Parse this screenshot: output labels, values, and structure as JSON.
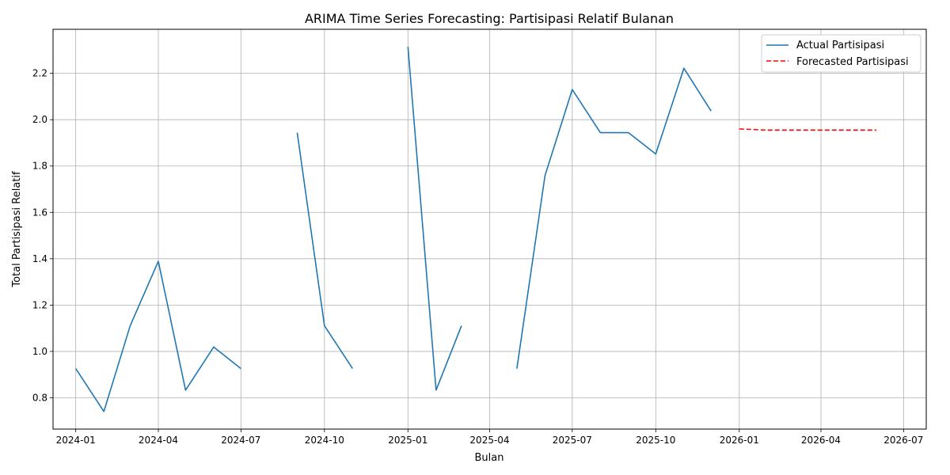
{
  "chart_data": {
    "type": "line",
    "title": "ARIMA Time Series Forecasting: Partisipasi Relatif Bulanan",
    "xlabel": "Bulan",
    "ylabel": "Total Partisipasi Relatif",
    "x_ticks": [
      "2024-01",
      "2024-04",
      "2024-07",
      "2024-10",
      "2025-01",
      "2025-04",
      "2025-07",
      "2025-10",
      "2026-01",
      "2026-04",
      "2026-07"
    ],
    "y_ticks": [
      "0.8",
      "1.0",
      "1.2",
      "1.4",
      "1.6",
      "1.8",
      "2.0",
      "2.2"
    ],
    "ylim": [
      0.665,
      2.39
    ],
    "xlim": [
      "2023-12-07",
      "2026-07-26"
    ],
    "grid": true,
    "legend": "top-right",
    "series": [
      {
        "name": "Actual Partisipasi",
        "color": "#1f77b4",
        "style": "solid",
        "x": [
          "2024-01",
          "2024-02",
          "2024-03",
          "2024-04",
          "2024-05",
          "2024-06",
          "2024-07",
          "2024-08",
          "2024-09",
          "2024-10",
          "2024-11",
          "2024-12",
          "2025-01",
          "2025-02",
          "2025-03",
          "2025-04",
          "2025-05",
          "2025-06",
          "2025-07",
          "2025-08",
          "2025-09",
          "2025-10",
          "2025-11",
          "2025-12"
        ],
        "values": [
          0.926,
          0.741,
          1.111,
          1.389,
          0.833,
          1.019,
          0.926,
          null,
          1.944,
          1.111,
          0.926,
          null,
          2.315,
          0.833,
          1.111,
          null,
          0.926,
          1.759,
          2.13,
          1.944,
          1.944,
          1.852,
          2.222,
          2.037
        ]
      },
      {
        "name": "Forecasted Partisipasi",
        "color": "#ff0000",
        "style": "dashed",
        "x": [
          "2026-01",
          "2026-02",
          "2026-03",
          "2026-04",
          "2026-05",
          "2026-06"
        ],
        "values": [
          1.96,
          1.955,
          1.955,
          1.955,
          1.955,
          1.955
        ]
      }
    ]
  }
}
